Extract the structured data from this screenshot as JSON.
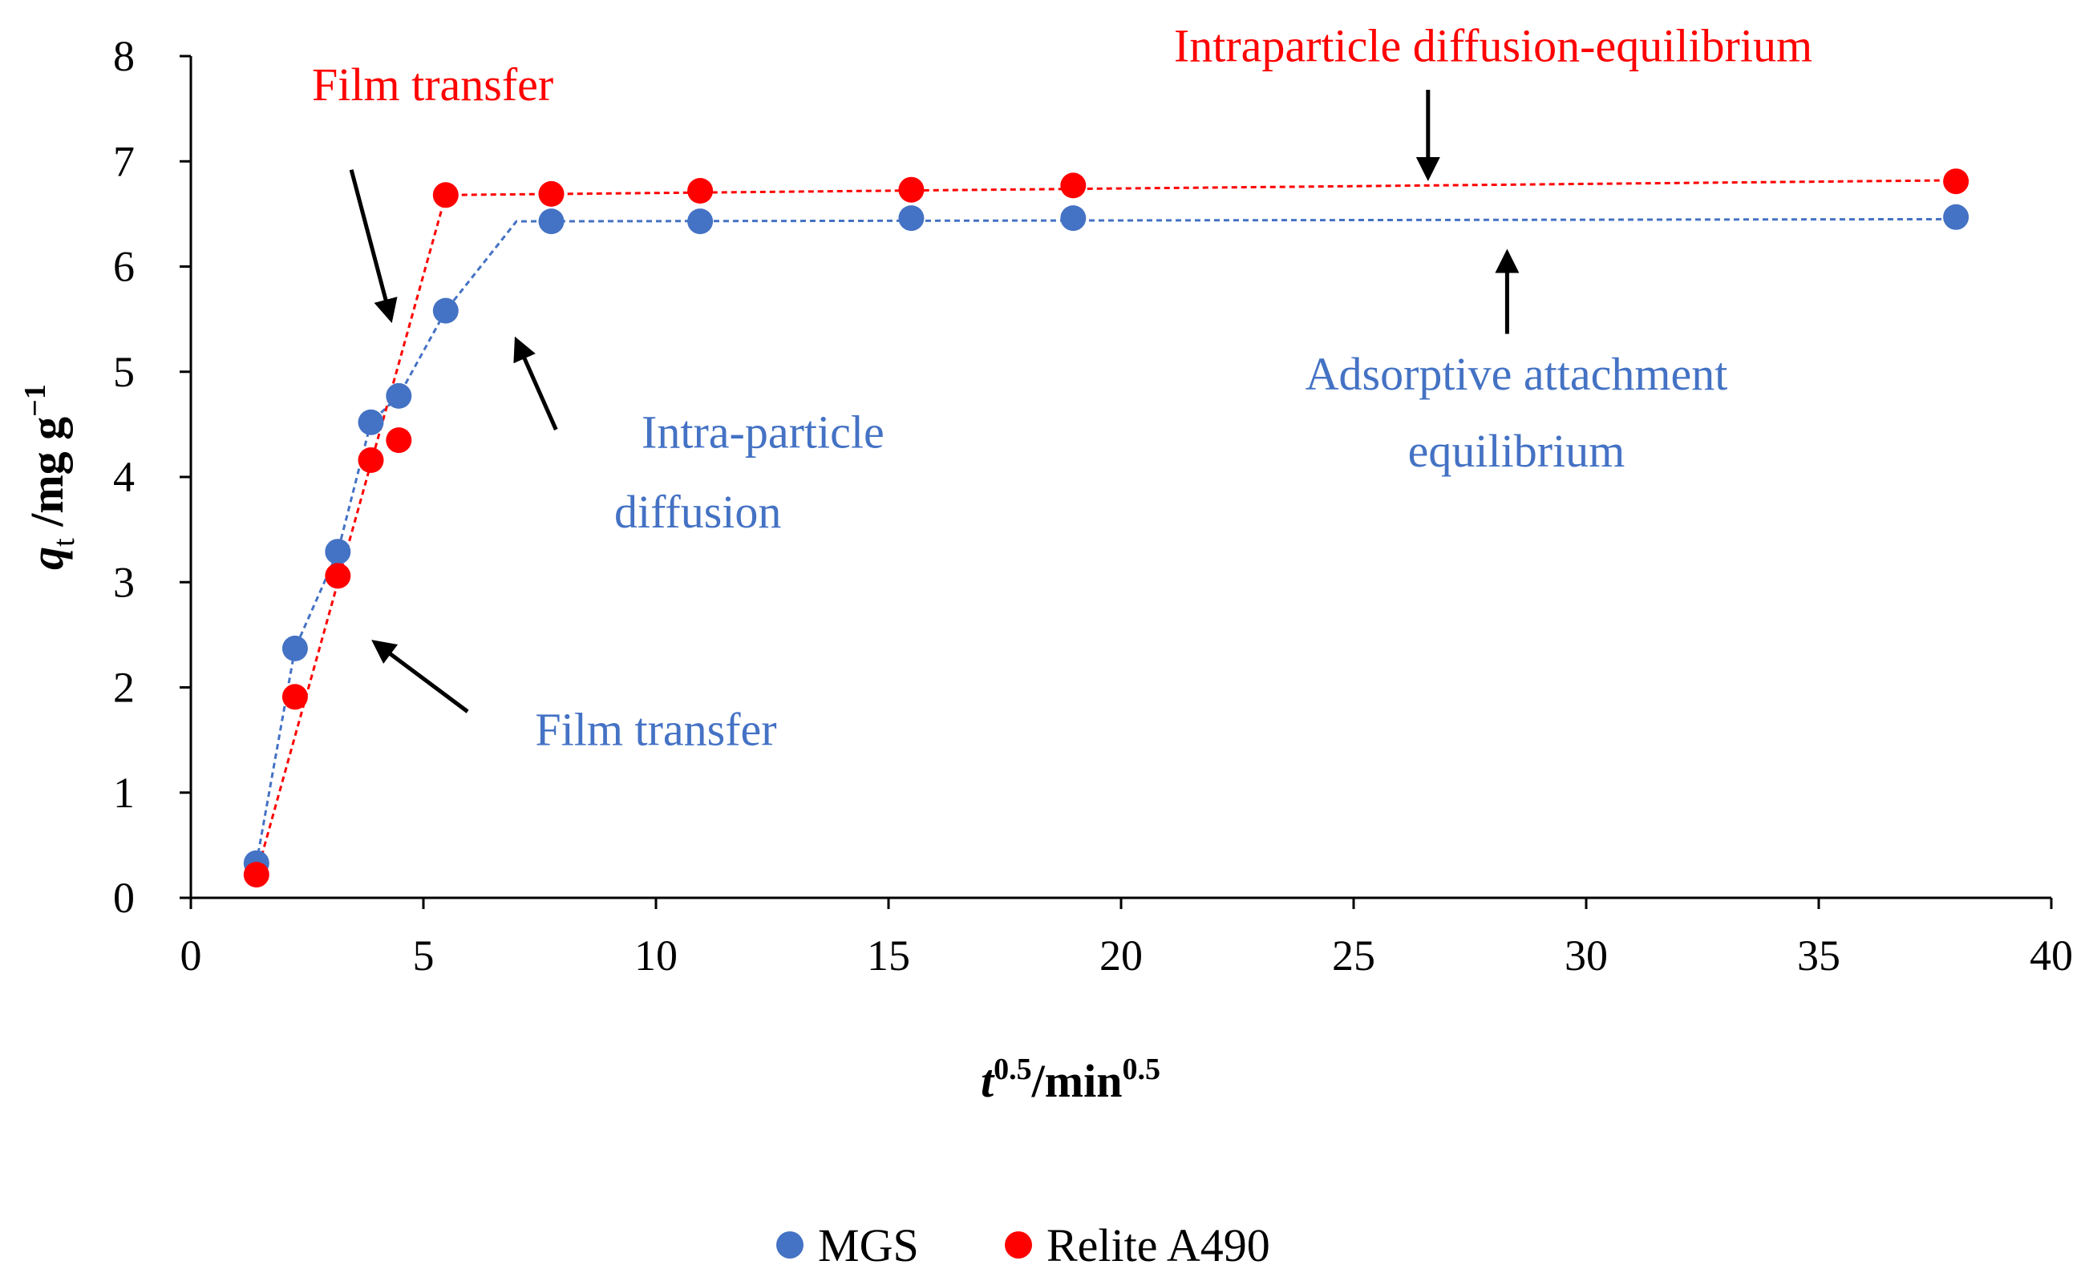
{
  "chart_data": {
    "type": "scatter",
    "title": "",
    "xlabel": {
      "main": "t",
      "sup1": "0.5",
      "mid": "/min",
      "sup2": "0.5"
    },
    "ylabel": {
      "main": "q",
      "sub": "t",
      "mid": " /mg g",
      "sup": "−1"
    },
    "xlim": [
      0,
      40
    ],
    "ylim": [
      0,
      8
    ],
    "xticks": [
      0,
      5,
      10,
      15,
      20,
      25,
      30,
      35,
      40
    ],
    "yticks": [
      0,
      1,
      2,
      3,
      4,
      5,
      6,
      7,
      8
    ],
    "grid": false,
    "legend_position": "bottom-center",
    "series": [
      {
        "name": "MGS",
        "color": "#4472C4",
        "points": [
          [
            1.41,
            0.33
          ],
          [
            2.24,
            2.37
          ],
          [
            3.16,
            3.29
          ],
          [
            3.87,
            4.52
          ],
          [
            4.47,
            4.77
          ],
          [
            5.48,
            5.58
          ],
          [
            7.75,
            6.43
          ],
          [
            10.95,
            6.43
          ],
          [
            15.49,
            6.46
          ],
          [
            18.97,
            6.46
          ],
          [
            37.95,
            6.47
          ]
        ],
        "trend": [
          [
            1.41,
            0.33
          ],
          [
            2.24,
            2.37
          ],
          [
            3.16,
            3.29
          ],
          [
            3.87,
            4.52
          ],
          [
            4.47,
            4.77
          ],
          [
            5.48,
            5.58
          ],
          [
            7.0,
            6.43
          ],
          [
            37.95,
            6.45
          ]
        ]
      },
      {
        "name": "Relite A490",
        "color": "#FF0000",
        "points": [
          [
            1.41,
            0.22
          ],
          [
            2.24,
            1.91
          ],
          [
            3.16,
            3.06
          ],
          [
            3.87,
            4.16
          ],
          [
            4.47,
            4.35
          ],
          [
            5.48,
            6.68
          ],
          [
            7.75,
            6.69
          ],
          [
            10.95,
            6.72
          ],
          [
            15.49,
            6.73
          ],
          [
            18.97,
            6.77
          ],
          [
            37.95,
            6.81
          ]
        ],
        "trend": [
          [
            1.41,
            0.22
          ],
          [
            5.48,
            6.68
          ],
          [
            37.95,
            6.82
          ]
        ]
      }
    ],
    "annotations": [
      {
        "id": "film-transfer-red",
        "text": "Film transfer",
        "color": "#FF0000",
        "x": 5.2,
        "y": 7.58,
        "arrow_from": [
          3.45,
          6.92
        ],
        "arrow_to": [
          4.3,
          5.5
        ]
      },
      {
        "id": "intraparticle-equilibrium-red",
        "text": "Intraparticle diffusion-equilibrium",
        "color": "#FF0000",
        "x": 28.0,
        "y": 7.95,
        "arrow_from": [
          26.6,
          7.68
        ],
        "arrow_to": [
          26.6,
          6.85
        ]
      },
      {
        "id": "intra-particle-blue",
        "text": "Intra-particle",
        "color": "#4472C4",
        "x": 12.3,
        "y": 4.28,
        "arrow_from": [
          7.85,
          4.45
        ],
        "arrow_to": [
          7.0,
          5.3
        ]
      },
      {
        "id": "diffusion-blue",
        "text": "diffusion",
        "color": "#4472C4",
        "x": 10.9,
        "y": 3.52,
        "arrow_from": null,
        "arrow_to": null
      },
      {
        "id": "film-transfer-blue",
        "text": "Film transfer",
        "color": "#4472C4",
        "x": 10.0,
        "y": 1.45,
        "arrow_from": [
          5.95,
          1.77
        ],
        "arrow_to": [
          3.95,
          2.43
        ]
      },
      {
        "id": "adsorptive-attachment-blue",
        "text": "Adsorptive attachment",
        "color": "#4472C4",
        "x": 28.5,
        "y": 4.83,
        "arrow_from": [
          28.3,
          5.36
        ],
        "arrow_to": [
          28.3,
          6.13
        ]
      },
      {
        "id": "equilibrium-blue",
        "text": "equilibrium",
        "color": "#4472C4",
        "x": 28.5,
        "y": 4.1,
        "arrow_from": null,
        "arrow_to": null
      }
    ]
  }
}
